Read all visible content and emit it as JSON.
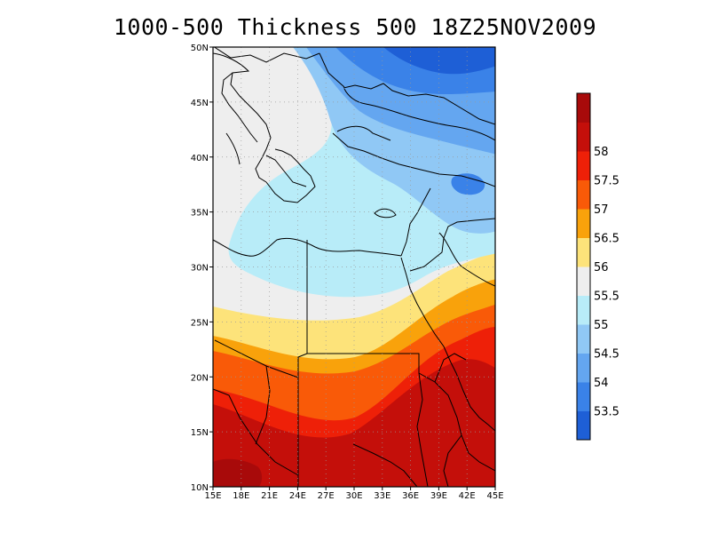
{
  "title": "1000-500 Thickness 500 18Z25NOV2009",
  "map": {
    "lon_range": [
      15,
      45
    ],
    "lat_range": [
      10,
      50
    ],
    "grid": true,
    "lon_ticks": [
      "15E",
      "18E",
      "21E",
      "24E",
      "27E",
      "30E",
      "33E",
      "36E",
      "39E",
      "42E",
      "45E"
    ],
    "lat_ticks": [
      "10N",
      "15N",
      "20N",
      "25N",
      "30N",
      "35N",
      "40N",
      "45N",
      "50N"
    ]
  },
  "colorbar": {
    "levels": [
      "53.5",
      "54",
      "54.5",
      "55",
      "55.5",
      "56",
      "56.5",
      "57",
      "57.5",
      "58"
    ],
    "colors": [
      "#1e5fd6",
      "#3a82e8",
      "#64a6f0",
      "#90c8f5",
      "#b8ecf8",
      "#eeeeee",
      "#fde37a",
      "#f9a20b",
      "#f95a08",
      "#ee2008",
      "#c40f0a",
      "#a80a0a"
    ]
  },
  "chart_data": {
    "type": "heatmap",
    "title": "1000-500 Thickness 500 18Z25NOV2009",
    "variable": "1000-500 Thickness",
    "levels": [
      53.5,
      54,
      54.5,
      55,
      55.5,
      56,
      56.5,
      57,
      57.5,
      58
    ],
    "x_range": [
      15,
      45
    ],
    "y_range": [
      10,
      50
    ],
    "contours": [
      {
        "bin": "<53.5",
        "lon": [
          40.3,
          42.5,
          41.2
        ],
        "lat": [
          47.5,
          49.9,
          49.6
        ]
      },
      {
        "bin": "58-58.5",
        "lon": [
          15,
          45
        ],
        "lat": [
          10,
          14
        ],
        "note": "southern region peaks above 58"
      }
    ]
  }
}
